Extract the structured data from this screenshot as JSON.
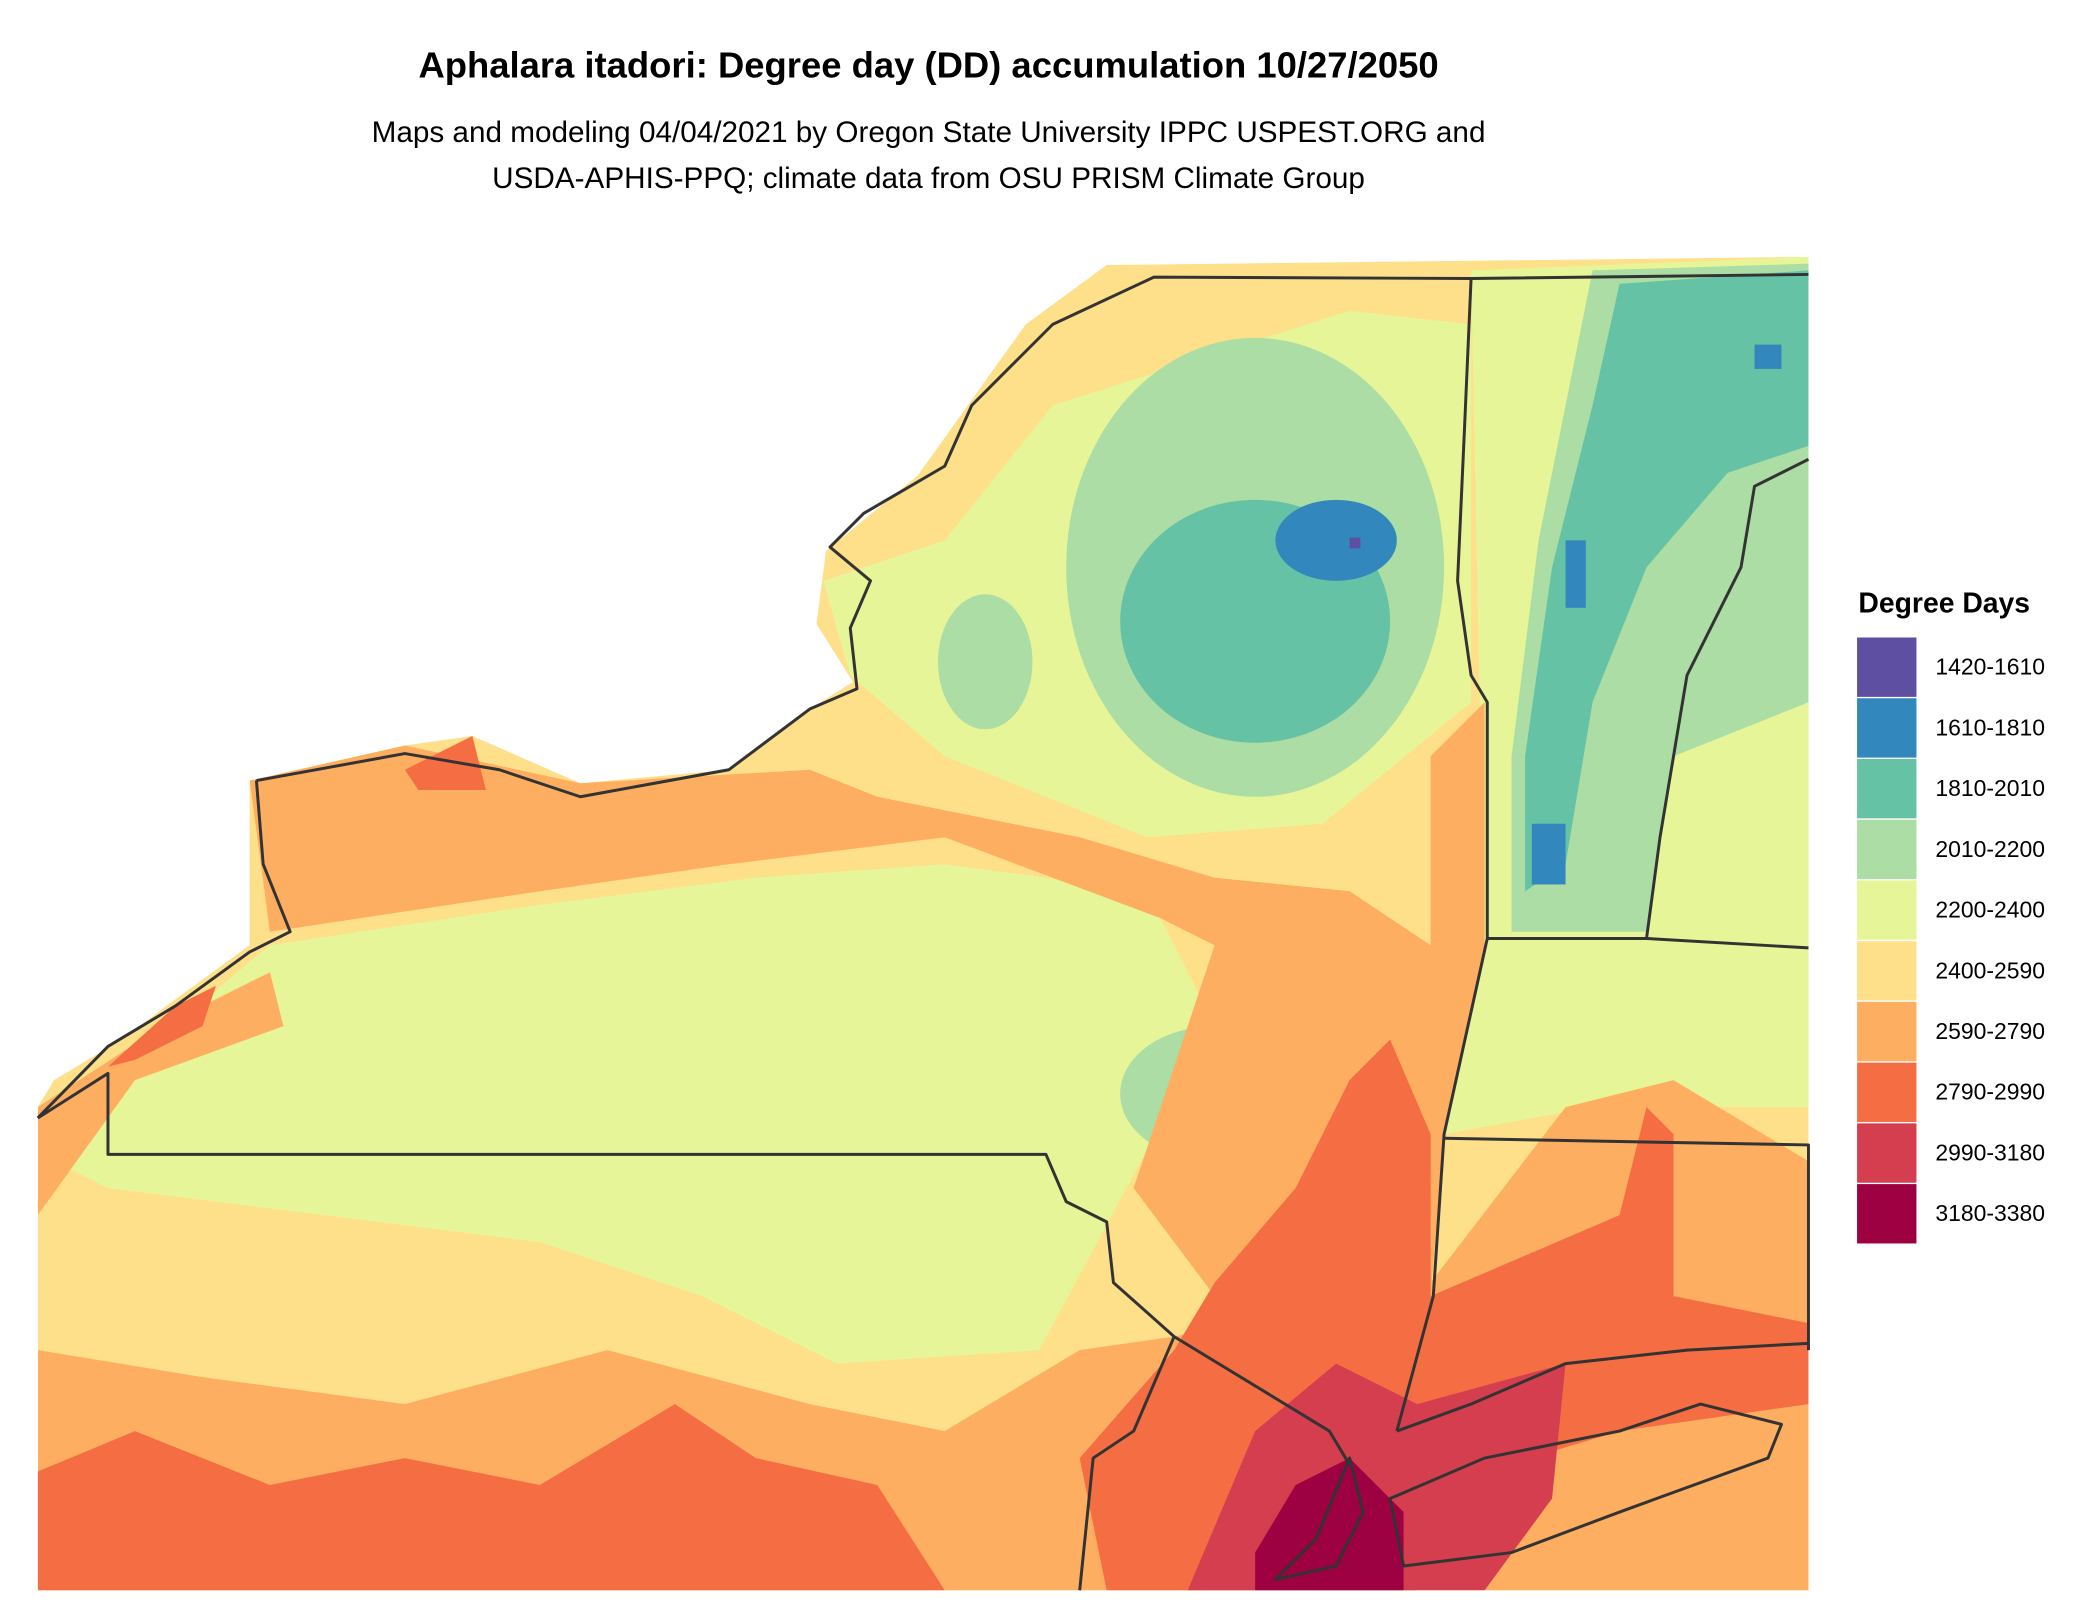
{
  "title": "Aphalara itadori: Degree day (DD) accumulation 10/27/2050",
  "subtitle": [
    "Maps and modeling 04/04/2021 by Oregon State University IPPC USPEST.ORG and",
    "USDA-APHIS-PPQ; climate data from OSU PRISM Climate Group"
  ],
  "legend": {
    "title": "Degree Days",
    "items": [
      {
        "label": "1420-1610",
        "color": "#5e4fa2"
      },
      {
        "label": "1610-1810",
        "color": "#3288bd"
      },
      {
        "label": "1810-2010",
        "color": "#66c2a5"
      },
      {
        "label": "2010-2200",
        "color": "#abdda4"
      },
      {
        "label": "2200-2400",
        "color": "#e6f598"
      },
      {
        "label": "2400-2590",
        "color": "#fee08b"
      },
      {
        "label": "2590-2790",
        "color": "#fdae61"
      },
      {
        "label": "2790-2990",
        "color": "#f46d43"
      },
      {
        "label": "2990-3180",
        "color": "#d53e4f"
      },
      {
        "label": "3180-3380",
        "color": "#9e0142"
      }
    ]
  }
}
